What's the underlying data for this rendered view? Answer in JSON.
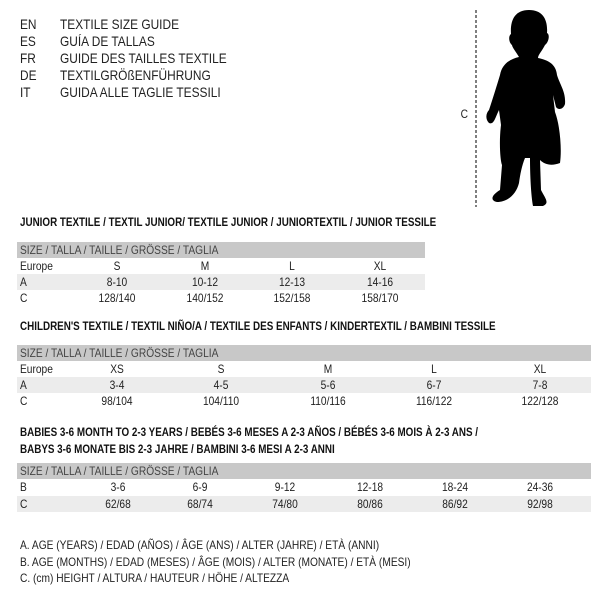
{
  "languages": [
    {
      "code": "EN",
      "text": "TEXTILE SIZE GUIDE"
    },
    {
      "code": "ES",
      "text": "GUÍA DE TALLAS"
    },
    {
      "code": "FR",
      "text": "GUIDE DES TAILLES TEXTILE"
    },
    {
      "code": "DE",
      "text": "TEXTILGRÖßENFÜHRUNG"
    },
    {
      "code": "IT",
      "text": "GUIDA ALLE TAGLIE TESSILI"
    }
  ],
  "figure": {
    "measure_label": "C",
    "icon": "child-silhouette"
  },
  "junior": {
    "title": "JUNIOR TEXTILE / TEXTIL JUNIOR/ TEXTILE JUNIOR / JUNIORTEXTIL / JUNIOR TESSILE",
    "header": "SIZE / TALLA / TAILLE / GRÖSSE / TAGLIA",
    "rows": [
      {
        "label": "Europe",
        "cells": [
          "S",
          "M",
          "L",
          "XL"
        ]
      },
      {
        "label": "A",
        "cells": [
          "8-10",
          "10-12",
          "12-13",
          "14-16"
        ]
      },
      {
        "label": "C",
        "cells": [
          "128/140",
          "140/152",
          "152/158",
          "158/170"
        ]
      }
    ]
  },
  "children": {
    "title": "CHILDREN'S TEXTILE / TEXTIL NIÑO/A / TEXTILE DES ENFANTS / KINDERTEXTIL / BAMBINI TESSILE",
    "header": "SIZE / TALLA / TAILLE / GRÖSSE / TAGLIA",
    "rows": [
      {
        "label": "Europe",
        "cells": [
          "XS",
          "S",
          "M",
          "L",
          "XL"
        ]
      },
      {
        "label": "A",
        "cells": [
          "3-4",
          "4-5",
          "5-6",
          "6-7",
          "7-8"
        ]
      },
      {
        "label": "C",
        "cells": [
          "98/104",
          "104/110",
          "110/116",
          "116/122",
          "122/128"
        ]
      }
    ]
  },
  "babies": {
    "title_line1": "BABIES 3-6 MONTH TO 2-3 YEARS / BEBÉS 3-6 MESES A 2-3 AÑOS / BÉBÉS 3-6 MOIS À 2-3 ANS /",
    "title_line2": "BABYS 3-6 MONATE BIS 2-3 JAHRE / BAMBINI 3-6 MESI A 2-3 ANNI",
    "header": "SIZE / TALLA / TAILLE / GRÖSSE / TAGLIA",
    "rows": [
      {
        "label": "B",
        "cells": [
          "3-6",
          "6-9",
          "9-12",
          "12-18",
          "18-24",
          "24-36"
        ]
      },
      {
        "label": "C",
        "cells": [
          "62/68",
          "68/74",
          "74/80",
          "80/86",
          "86/92",
          "92/98"
        ]
      }
    ]
  },
  "legend": [
    "A. AGE (YEARS) / EDAD (AÑOS) / ÂGE (ANS) / ALTER (JAHRE) / ETÀ (ANNI)",
    "B. AGE (MONTHS) / EDAD (MESES) / ÂGE (MOIS) / ALTER (MONATE) / ETÀ (MESI)",
    "C. (cm) HEIGHT / ALTURA / HAUTEUR / HÖHE / ALTEZZA"
  ]
}
